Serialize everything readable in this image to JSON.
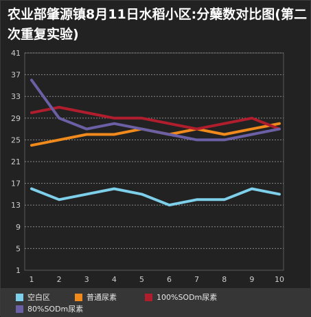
{
  "title": "农业部肇源镇8月11日水稻小区:分蘖数对比图(第二次重复实验)",
  "chart_data": {
    "type": "line",
    "title": "农业部肇源镇8月11日水稻小区:分蘖数对比图(第二次重复实验)",
    "x": [
      1,
      2,
      3,
      4,
      5,
      6,
      7,
      8,
      9,
      10
    ],
    "xlabel": "",
    "ylabel": "",
    "yticks": [
      1,
      5,
      9,
      13,
      17,
      21,
      25,
      29,
      33,
      37,
      41
    ],
    "ylim": [
      1,
      41
    ],
    "grid": "horizontal dotted",
    "legend_position": "bottom",
    "series": [
      {
        "name": "空白区",
        "color": "#7ecfea",
        "values": [
          16,
          14,
          15,
          16,
          15,
          13,
          14,
          14,
          16,
          15
        ]
      },
      {
        "name": "普通尿素",
        "color": "#f08a1c",
        "values": [
          24,
          25,
          26,
          26,
          27,
          26,
          27,
          26,
          27,
          28
        ]
      },
      {
        "name": "100%SODm尿素",
        "color": "#b01e2e",
        "values": [
          30,
          31,
          30,
          29,
          29,
          28,
          27,
          28,
          29,
          27
        ]
      },
      {
        "name": "80%SODm尿素",
        "color": "#6b5fa5",
        "values": [
          36,
          29,
          27,
          28,
          27,
          26,
          25,
          25,
          26,
          27
        ]
      }
    ]
  }
}
